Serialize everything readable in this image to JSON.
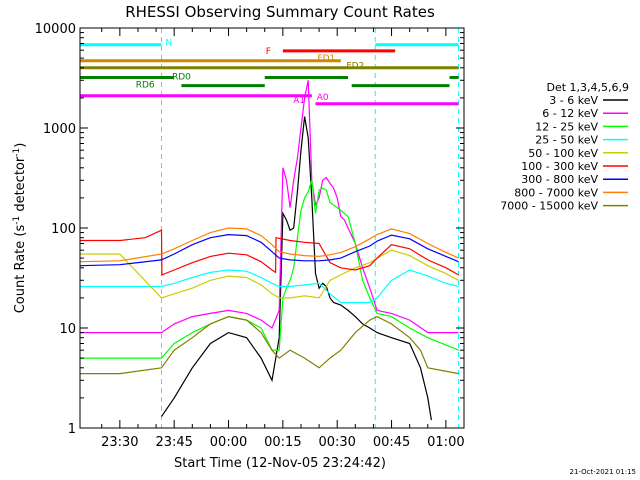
{
  "chart_data": {
    "type": "line",
    "title": "RHESSI Observing Summary Count Rates",
    "xlabel": "Start Time (12-Nov-05 23:24:42)",
    "ylabel_main": "Count Rate (s",
    "ylabel_sup1": "-1",
    "ylabel_mid": " detector",
    "ylabel_sup2": "-1",
    "ylabel_end": ")",
    "timestamp": "21-Oct-2021 01:15",
    "x_range_min": [
      -6,
      100
    ],
    "y_scale": "log",
    "ylim": [
      1,
      10000
    ],
    "y_ticks": [
      {
        "v": 1,
        "label": "1"
      },
      {
        "v": 10,
        "label": "10"
      },
      {
        "v": 100,
        "label": "100"
      },
      {
        "v": 1000,
        "label": "1000"
      },
      {
        "v": 10000,
        "label": "10000"
      }
    ],
    "x_ticks": [
      {
        "v": 5,
        "label": "23:30"
      },
      {
        "v": 20,
        "label": "23:45"
      },
      {
        "v": 35,
        "label": "00:00"
      },
      {
        "v": 50,
        "label": "00:15"
      },
      {
        "v": 65,
        "label": "00:30"
      },
      {
        "v": 80,
        "label": "00:45"
      },
      {
        "v": 95,
        "label": "01:00"
      }
    ],
    "legend_title": "Det 1,3,4,5,6,9",
    "legend_position": "right",
    "night_boundaries": [
      -6,
      16.5,
      75.5,
      98.5
    ],
    "series": [
      {
        "name": "3 - 6 keV",
        "color": "#000000",
        "points": [
          [
            16.5,
            1.3
          ],
          [
            20,
            2
          ],
          [
            25,
            4
          ],
          [
            30,
            7
          ],
          [
            35,
            9
          ],
          [
            40,
            8
          ],
          [
            44,
            5
          ],
          [
            47,
            3
          ],
          [
            49,
            8
          ],
          [
            50,
            140
          ],
          [
            51,
            120
          ],
          [
            52,
            95
          ],
          [
            53,
            100
          ],
          [
            54,
            230
          ],
          [
            55,
            600
          ],
          [
            56,
            1300
          ],
          [
            57,
            800
          ],
          [
            58,
            200
          ],
          [
            59,
            35
          ],
          [
            60,
            25
          ],
          [
            61,
            28
          ],
          [
            62,
            26
          ],
          [
            63,
            20
          ],
          [
            64,
            18
          ],
          [
            66,
            17
          ],
          [
            68,
            15
          ],
          [
            70,
            13
          ],
          [
            72,
            11
          ],
          [
            74,
            10
          ],
          [
            76,
            9
          ],
          [
            80,
            8
          ],
          [
            85,
            7
          ],
          [
            88,
            4
          ],
          [
            90,
            2
          ],
          [
            91,
            1.2
          ]
        ]
      },
      {
        "name": "6 - 12 keV",
        "color": "#ff00ff",
        "points": [
          [
            -6,
            9
          ],
          [
            5,
            9
          ],
          [
            16.5,
            9
          ],
          [
            20,
            11
          ],
          [
            25,
            13
          ],
          [
            30,
            14
          ],
          [
            35,
            15
          ],
          [
            40,
            14
          ],
          [
            44,
            12
          ],
          [
            47,
            10
          ],
          [
            49,
            15
          ],
          [
            50,
            400
          ],
          [
            51,
            300
          ],
          [
            52,
            160
          ],
          [
            53,
            300
          ],
          [
            54,
            500
          ],
          [
            55,
            1000
          ],
          [
            56,
            2000
          ],
          [
            57,
            3000
          ],
          [
            58,
            300
          ],
          [
            59,
            170
          ],
          [
            60,
            200
          ],
          [
            61,
            300
          ],
          [
            62,
            320
          ],
          [
            63,
            280
          ],
          [
            64,
            250
          ],
          [
            65,
            200
          ],
          [
            66,
            130
          ],
          [
            67,
            120
          ],
          [
            68,
            100
          ],
          [
            70,
            70
          ],
          [
            72,
            40
          ],
          [
            74,
            25
          ],
          [
            76,
            15
          ],
          [
            80,
            14
          ],
          [
            85,
            12
          ],
          [
            90,
            9
          ],
          [
            98.5,
            9
          ]
        ]
      },
      {
        "name": "12 - 25 keV",
        "color": "#00ff00",
        "points": [
          [
            -6,
            5
          ],
          [
            5,
            5
          ],
          [
            16.5,
            5
          ],
          [
            20,
            7
          ],
          [
            25,
            9
          ],
          [
            30,
            11
          ],
          [
            35,
            13
          ],
          [
            40,
            12
          ],
          [
            44,
            10
          ],
          [
            47,
            6
          ],
          [
            49,
            6
          ],
          [
            50,
            20
          ],
          [
            51,
            25
          ],
          [
            52,
            30
          ],
          [
            53,
            40
          ],
          [
            54,
            80
          ],
          [
            55,
            150
          ],
          [
            56,
            200
          ],
          [
            57,
            230
          ],
          [
            58,
            300
          ],
          [
            59,
            140
          ],
          [
            60,
            240
          ],
          [
            61,
            250
          ],
          [
            62,
            240
          ],
          [
            63,
            180
          ],
          [
            64,
            170
          ],
          [
            65,
            160
          ],
          [
            66,
            150
          ],
          [
            68,
            130
          ],
          [
            70,
            70
          ],
          [
            72,
            30
          ],
          [
            74,
            20
          ],
          [
            76,
            14
          ],
          [
            80,
            13
          ],
          [
            85,
            10
          ],
          [
            90,
            8
          ],
          [
            98.5,
            6
          ]
        ]
      },
      {
        "name": "25 - 50 keV",
        "color": "#00ffff",
        "points": [
          [
            -6,
            26
          ],
          [
            5,
            26
          ],
          [
            16.5,
            26
          ],
          [
            20,
            28
          ],
          [
            25,
            32
          ],
          [
            30,
            36
          ],
          [
            35,
            38
          ],
          [
            40,
            37
          ],
          [
            44,
            32
          ],
          [
            47,
            28
          ],
          [
            49,
            26
          ],
          [
            52,
            26
          ],
          [
            56,
            27
          ],
          [
            60,
            28
          ],
          [
            63,
            22
          ],
          [
            66,
            18
          ],
          [
            70,
            18
          ],
          [
            74,
            18
          ],
          [
            76,
            20
          ],
          [
            80,
            30
          ],
          [
            85,
            38
          ],
          [
            90,
            33
          ],
          [
            95,
            28
          ],
          [
            98.5,
            26
          ]
        ]
      },
      {
        "name": "50 - 100 keV",
        "color": "#cccc00",
        "points": [
          [
            -6,
            55
          ],
          [
            5,
            55
          ],
          [
            16.5,
            20
          ],
          [
            20,
            22
          ],
          [
            25,
            25
          ],
          [
            30,
            30
          ],
          [
            35,
            33
          ],
          [
            40,
            32
          ],
          [
            44,
            27
          ],
          [
            47,
            22
          ],
          [
            49,
            20
          ],
          [
            52,
            20
          ],
          [
            56,
            21
          ],
          [
            60,
            20
          ],
          [
            63,
            30
          ],
          [
            66,
            34
          ],
          [
            70,
            40
          ],
          [
            74,
            45
          ],
          [
            76,
            50
          ],
          [
            80,
            60
          ],
          [
            85,
            53
          ],
          [
            90,
            42
          ],
          [
            95,
            35
          ],
          [
            98.5,
            30
          ]
        ]
      },
      {
        "name": "100 - 300 keV",
        "color": "#ff0000",
        "points": [
          [
            -6,
            75
          ],
          [
            5,
            75
          ],
          [
            12,
            80
          ],
          [
            16.5,
            95
          ],
          [
            16.6,
            34
          ],
          [
            20,
            38
          ],
          [
            25,
            45
          ],
          [
            30,
            52
          ],
          [
            35,
            56
          ],
          [
            40,
            54
          ],
          [
            44,
            46
          ],
          [
            47,
            38
          ],
          [
            48,
            36
          ],
          [
            48.1,
            80
          ],
          [
            52,
            75
          ],
          [
            56,
            72
          ],
          [
            60,
            70
          ],
          [
            63,
            45
          ],
          [
            66,
            40
          ],
          [
            70,
            38
          ],
          [
            74,
            42
          ],
          [
            76,
            50
          ],
          [
            80,
            68
          ],
          [
            85,
            62
          ],
          [
            90,
            48
          ],
          [
            95,
            40
          ],
          [
            98.5,
            34
          ]
        ]
      },
      {
        "name": "300 - 800 keV",
        "color": "#0000ff",
        "points": [
          [
            -6,
            42
          ],
          [
            5,
            43
          ],
          [
            16.5,
            48
          ],
          [
            20,
            55
          ],
          [
            25,
            68
          ],
          [
            30,
            80
          ],
          [
            35,
            86
          ],
          [
            40,
            84
          ],
          [
            44,
            72
          ],
          [
            47,
            58
          ],
          [
            49,
            50
          ],
          [
            52,
            48
          ],
          [
            56,
            47
          ],
          [
            60,
            47
          ],
          [
            63,
            48
          ],
          [
            66,
            50
          ],
          [
            70,
            58
          ],
          [
            74,
            66
          ],
          [
            76,
            74
          ],
          [
            80,
            85
          ],
          [
            85,
            78
          ],
          [
            90,
            62
          ],
          [
            95,
            52
          ],
          [
            98.5,
            46
          ]
        ]
      },
      {
        "name": "800 - 7000 keV",
        "color": "#ff8000",
        "points": [
          [
            -6,
            46
          ],
          [
            5,
            47
          ],
          [
            16.5,
            55
          ],
          [
            20,
            62
          ],
          [
            25,
            75
          ],
          [
            30,
            90
          ],
          [
            35,
            100
          ],
          [
            40,
            98
          ],
          [
            44,
            84
          ],
          [
            47,
            68
          ],
          [
            49,
            58
          ],
          [
            52,
            55
          ],
          [
            56,
            53
          ],
          [
            60,
            52
          ],
          [
            63,
            54
          ],
          [
            66,
            57
          ],
          [
            70,
            65
          ],
          [
            74,
            78
          ],
          [
            76,
            86
          ],
          [
            80,
            98
          ],
          [
            85,
            88
          ],
          [
            90,
            70
          ],
          [
            95,
            57
          ],
          [
            98.5,
            50
          ]
        ]
      },
      {
        "name": "7000 - 15000 keV",
        "color": "#808000",
        "points": [
          [
            -6,
            3.5
          ],
          [
            5,
            3.5
          ],
          [
            16.5,
            4
          ],
          [
            20,
            6
          ],
          [
            25,
            8
          ],
          [
            30,
            11
          ],
          [
            35,
            13
          ],
          [
            40,
            12
          ],
          [
            44,
            9
          ],
          [
            47,
            6
          ],
          [
            49,
            5
          ],
          [
            52,
            6
          ],
          [
            56,
            5
          ],
          [
            60,
            4
          ],
          [
            63,
            5
          ],
          [
            66,
            6
          ],
          [
            70,
            9
          ],
          [
            74,
            12
          ],
          [
            76,
            13
          ],
          [
            80,
            11
          ],
          [
            85,
            8
          ],
          [
            88,
            6
          ],
          [
            90,
            4
          ],
          [
            98.5,
            3.5
          ]
        ]
      }
    ],
    "state_bars": [
      {
        "label": "N",
        "color": "#00ffff",
        "level": 6800,
        "segments": [
          [
            -6,
            16.5
          ],
          [
            75.5,
            98.5
          ]
        ],
        "label_x": 18.5,
        "label_level": 7300
      },
      {
        "label": "F",
        "color": "#ff0000",
        "level": 5900,
        "segments": [
          [
            50,
            81
          ]
        ],
        "label_x": 46,
        "label_level": 6000
      },
      {
        "label": "FD1",
        "color": "#cc8800",
        "level": 4700,
        "segments": [
          [
            -6,
            66
          ]
        ],
        "label_x": 62,
        "label_level": 5100
      },
      {
        "label": "FD2",
        "color": "#808000",
        "level": 4000,
        "segments": [
          [
            -6,
            98.5
          ]
        ],
        "label_x": 70,
        "label_level": 4300
      },
      {
        "label": "RD0",
        "color": "#008000",
        "level": 3200,
        "segments": [
          [
            -6,
            20
          ],
          [
            45,
            68
          ],
          [
            96,
            98.5
          ]
        ],
        "label_x": 22,
        "label_level": 3350
      },
      {
        "label": "RD6",
        "color": "#008000",
        "level": 2650,
        "segments": [
          [
            22,
            45
          ],
          [
            69,
            96
          ]
        ],
        "label_x": 12,
        "label_level": 2800
      },
      {
        "label": "A1",
        "color": "#ff00ff",
        "level": 2100,
        "segments": [
          [
            -6,
            58
          ]
        ],
        "label_x": 54.5,
        "label_level": 1950
      },
      {
        "label": "A0",
        "color": "#ff00ff",
        "level": 1750,
        "segments": [
          [
            59,
            98.5
          ]
        ],
        "label_x": 61,
        "label_level": 2100
      }
    ]
  }
}
